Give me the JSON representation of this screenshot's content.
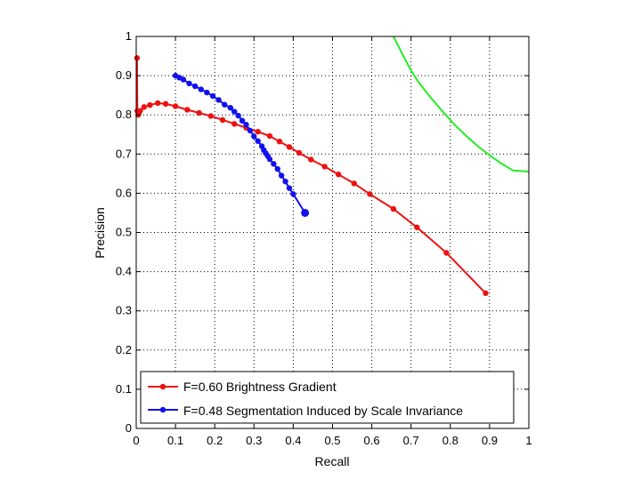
{
  "chart_data": {
    "type": "line",
    "title": "",
    "xlabel": "Recall",
    "ylabel": "Precision",
    "xlim": [
      0,
      1
    ],
    "ylim": [
      0,
      1
    ],
    "xticks": [
      "0",
      "0.1",
      "0.2",
      "0.3",
      "0.4",
      "0.5",
      "0.6",
      "0.7",
      "0.8",
      "0.9",
      "1"
    ],
    "yticks": [
      "0",
      "0.1",
      "0.2",
      "0.3",
      "0.4",
      "0.5",
      "0.6",
      "0.7",
      "0.8",
      "0.9",
      "1"
    ],
    "grid": true,
    "legend_position": "bottom-left",
    "colors": {
      "red": "#ee1111",
      "blue": "#1111ee",
      "green": "#22ee22"
    },
    "series": [
      {
        "name": "F=0.60 Brightness Gradient",
        "color": "#ee1111",
        "marker": "circle",
        "x": [
          0.002,
          0.003,
          0.005,
          0.007,
          0.01,
          0.02,
          0.035,
          0.055,
          0.075,
          0.1,
          0.13,
          0.16,
          0.19,
          0.22,
          0.25,
          0.28,
          0.31,
          0.34,
          0.365,
          0.39,
          0.415,
          0.445,
          0.48,
          0.515,
          0.555,
          0.595,
          0.655,
          0.715,
          0.79,
          0.89
        ],
        "y": [
          0.945,
          0.81,
          0.8,
          0.805,
          0.81,
          0.82,
          0.825,
          0.83,
          0.828,
          0.822,
          0.813,
          0.805,
          0.797,
          0.787,
          0.777,
          0.767,
          0.757,
          0.746,
          0.732,
          0.718,
          0.703,
          0.686,
          0.668,
          0.648,
          0.625,
          0.598,
          0.56,
          0.513,
          0.448,
          0.345
        ]
      },
      {
        "name": "F=0.48 Segmentation Induced by Scale Invariance",
        "color": "#1111ee",
        "marker": "circle",
        "x": [
          0.1,
          0.11,
          0.12,
          0.135,
          0.15,
          0.165,
          0.18,
          0.195,
          0.21,
          0.225,
          0.24,
          0.25,
          0.26,
          0.27,
          0.28,
          0.29,
          0.3,
          0.31,
          0.32,
          0.325,
          0.33,
          0.335,
          0.34,
          0.35,
          0.36,
          0.37,
          0.38,
          0.39,
          0.4,
          0.43
        ],
        "y": [
          0.9,
          0.895,
          0.89,
          0.88,
          0.873,
          0.865,
          0.857,
          0.848,
          0.838,
          0.826,
          0.818,
          0.808,
          0.798,
          0.785,
          0.775,
          0.76,
          0.745,
          0.733,
          0.72,
          0.71,
          0.702,
          0.695,
          0.687,
          0.675,
          0.662,
          0.645,
          0.63,
          0.613,
          0.598,
          0.55
        ]
      },
      {
        "color": "#22ee22",
        "marker": "none",
        "x": [
          0.655,
          0.68,
          0.7,
          0.72,
          0.75,
          0.78,
          0.81,
          0.84,
          0.87,
          0.9,
          0.93,
          0.96,
          1.0
        ],
        "y": [
          1.0,
          0.951,
          0.913,
          0.882,
          0.844,
          0.809,
          0.776,
          0.747,
          0.72,
          0.697,
          0.676,
          0.658,
          0.655
        ]
      }
    ]
  }
}
